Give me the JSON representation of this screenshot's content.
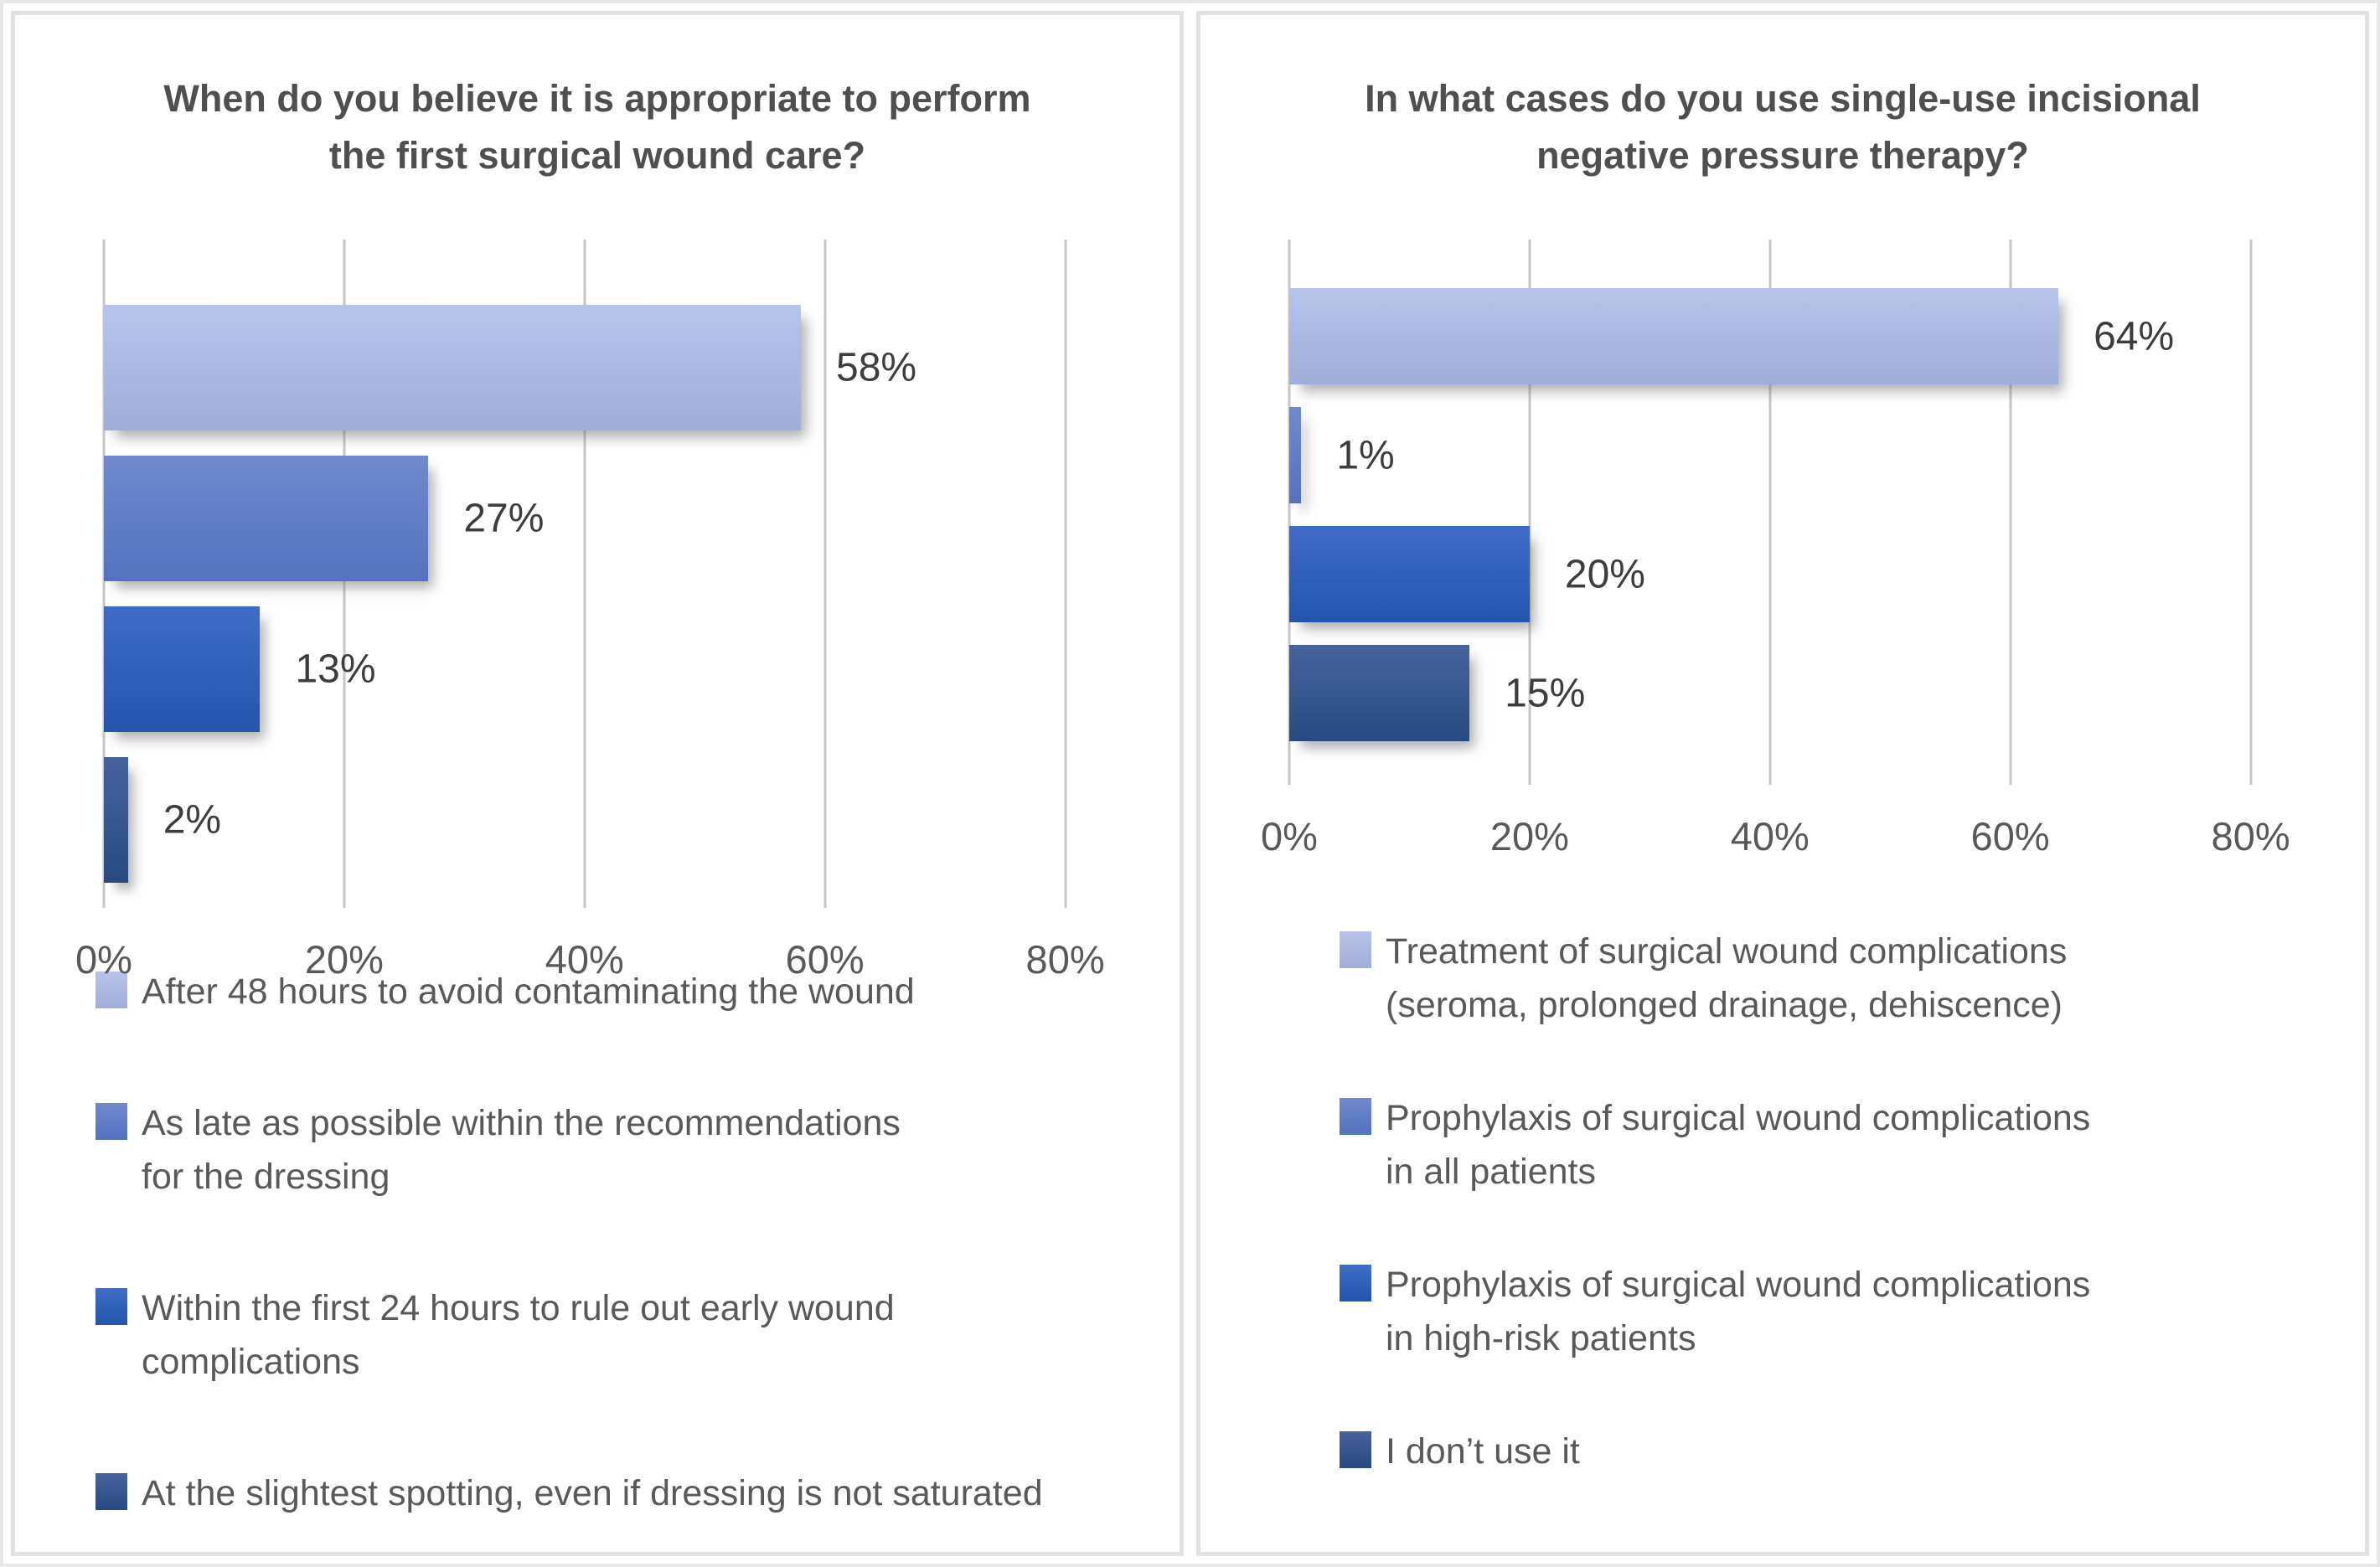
{
  "colors": {
    "background": "#ffffff",
    "panel_border": "#e2e2e2",
    "gridline": "#c6c6c6",
    "title_text": "#4f4f4f",
    "axis_text": "#595959",
    "value_text": "#3d3d3d",
    "legend_text": "#595959"
  },
  "chart_data": [
    {
      "type": "bar",
      "orientation": "horizontal",
      "title": "When do you believe it is appropriate to perform the first surgical wound care?",
      "title_display": "When do you believe it is appropriate to perform\nthe first surgical wound care?",
      "categories": [
        "After 48 hours to avoid contaminating the wound",
        "As late as possible within the recommendations for the dressing",
        "Within the first 24 hours to rule out early wound complications",
        "At the slightest spotting, even if dressing is not saturated"
      ],
      "values": [
        58,
        27,
        13,
        2
      ],
      "value_labels": [
        "58%",
        "27%",
        "13%",
        "2%"
      ],
      "xlim": [
        0,
        80
      ],
      "x_ticks": [
        "0%",
        "20%",
        "40%",
        "60%",
        "80%"
      ],
      "grid": true,
      "legend_position": "bottom",
      "legend_lines": [
        "After 48 hours to avoid contaminating the wound",
        "As late as possible within the recommendations\nfor the dressing",
        "Within the first 24 hours to rule out early wound\ncomplications",
        "At the slightest spotting, even if dressing is not saturated"
      ],
      "bar_styles": [
        {
          "name": "light-periwinkle",
          "top": "#b8c3e8",
          "bottom": "#9fadd8"
        },
        {
          "name": "medium-blue",
          "top": "#7089ce",
          "bottom": "#5372bf"
        },
        {
          "name": "strong-blue",
          "top": "#3f6dc5",
          "bottom": "#2355ac"
        },
        {
          "name": "dark-navy-blue",
          "top": "#47639e",
          "bottom": "#284a80"
        }
      ]
    },
    {
      "type": "bar",
      "orientation": "horizontal",
      "title": "In what cases do you use single-use incisional negative pressure therapy?",
      "title_display": "In what cases do you use single-use incisional\nnegative pressure therapy?",
      "categories": [
        "Treatment of surgical wound complications (seroma, prolonged drainage, dehiscence)",
        "Prophylaxis of surgical wound complications in all patients",
        "Prophylaxis of surgical wound complications in high-risk patients",
        "I don’t use it"
      ],
      "values": [
        64,
        1,
        20,
        15
      ],
      "value_labels": [
        "64%",
        "1%",
        "20%",
        "15%"
      ],
      "xlim": [
        0,
        80
      ],
      "x_ticks": [
        "0%",
        "20%",
        "40%",
        "60%",
        "80%"
      ],
      "grid": true,
      "legend_position": "bottom",
      "legend_lines": [
        "Treatment of surgical wound complications\n(seroma, prolonged drainage, dehiscence)",
        "Prophylaxis of surgical wound complications\nin all patients",
        "Prophylaxis of surgical wound complications\nin high-risk patients",
        "I don’t use it"
      ],
      "bar_styles": [
        {
          "name": "light-periwinkle",
          "top": "#b8c3e8",
          "bottom": "#9fadd8"
        },
        {
          "name": "medium-blue",
          "top": "#7089ce",
          "bottom": "#5372bf"
        },
        {
          "name": "strong-blue",
          "top": "#3f6dc5",
          "bottom": "#2355ac"
        },
        {
          "name": "dark-navy-blue",
          "top": "#47639e",
          "bottom": "#284a80"
        }
      ]
    }
  ]
}
